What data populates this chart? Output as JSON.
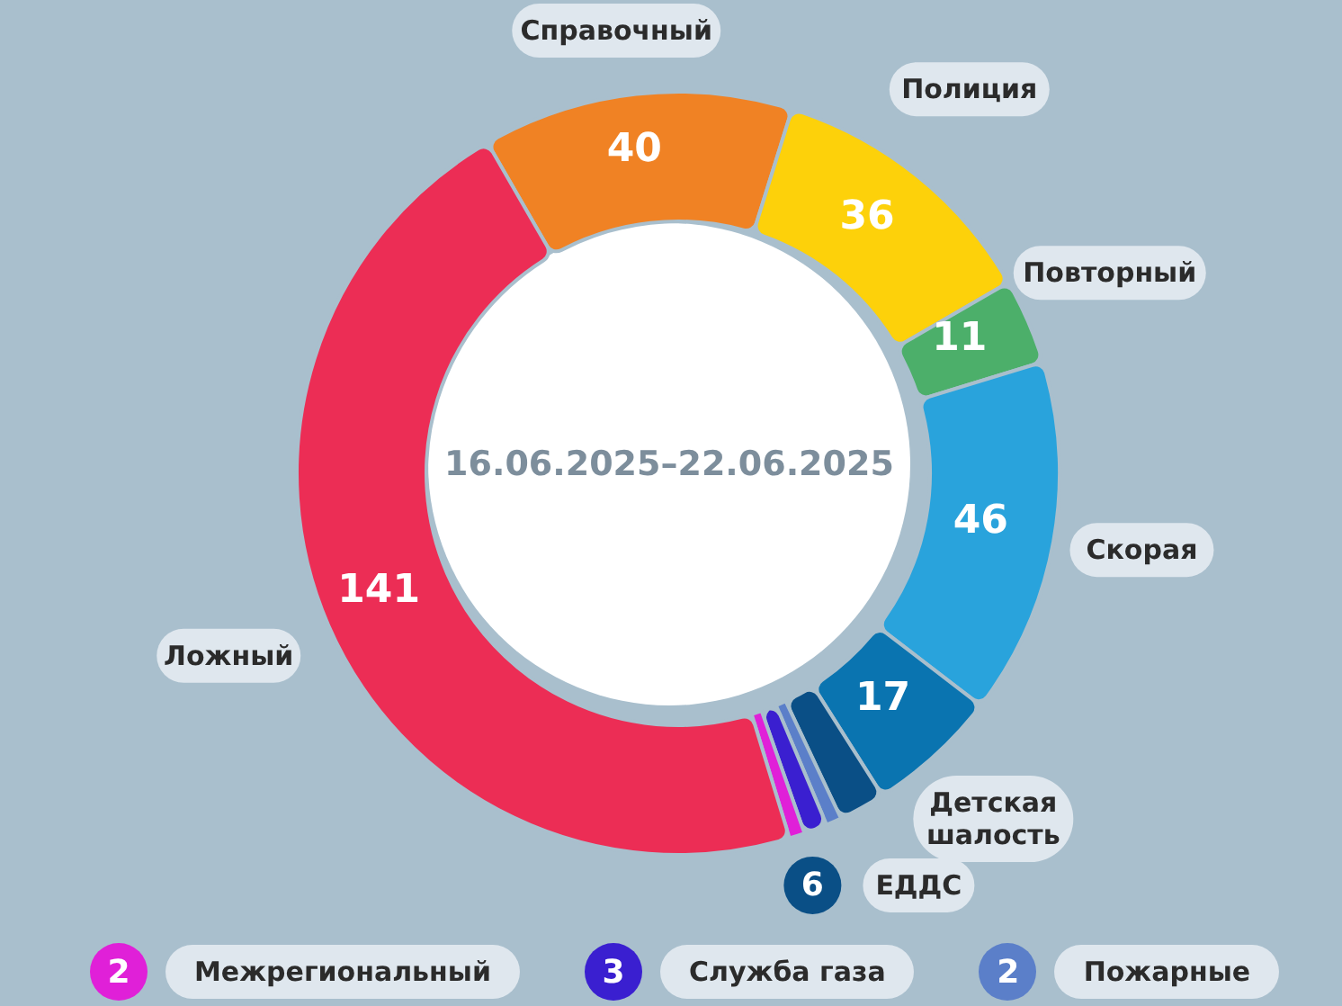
{
  "chart_data": {
    "type": "donut",
    "title": "16.06.2025–22.06.2025",
    "categories": [
      "Справочный",
      "Полиция",
      "Повторный",
      "Скорая",
      "Детская шалость",
      "ЕДДС",
      "Пожарные",
      "Служба газа",
      "Межрегиональный",
      "Ложный"
    ],
    "values": [
      40,
      36,
      11,
      46,
      17,
      6,
      2,
      3,
      2,
      141
    ],
    "colors": [
      "#f08224",
      "#fdd10a",
      "#4caf6a",
      "#29a3dc",
      "#0a74b0",
      "#0a4f86",
      "#5b7fc9",
      "#3a1fd0",
      "#e020d8",
      "#ec2d55"
    ],
    "data_labels": true,
    "legend": "bottom"
  }
}
